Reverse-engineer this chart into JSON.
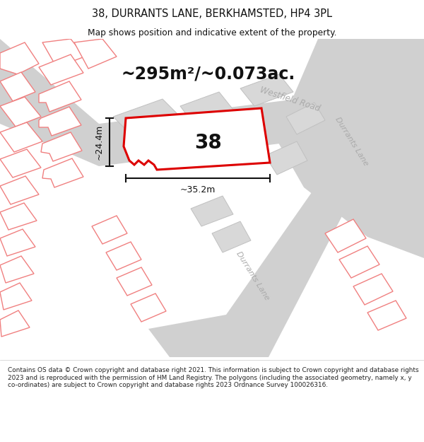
{
  "title_line1": "38, DURRANTS LANE, BERKHAMSTED, HP4 3PL",
  "title_line2": "Map shows position and indicative extent of the property.",
  "area_text": "~295m²/~0.073ac.",
  "number_label": "38",
  "dim_width": "~35.2m",
  "dim_height": "~24.4m",
  "road_label_1": "Westfield Road",
  "road_label_2a": "Durrants Lane",
  "road_label_2b": "Durrants Lane",
  "footer_text": "Contains OS data © Crown copyright and database right 2021. This information is subject to Crown copyright and database rights 2023 and is reproduced with the permission of HM Land Registry. The polygons (including the associated geometry, namely x, y co-ordinates) are subject to Crown copyright and database rights 2023 Ordnance Survey 100026316.",
  "bg_color": "#ffffff",
  "map_bg": "#f0f0f0",
  "building_fill": "#d8d8d8",
  "building_edge": "#c0c0c0",
  "other_plot_stroke": "#f08080",
  "other_plot_fill": "#ffffff",
  "main_plot_stroke": "#dd0000",
  "main_plot_fill": "#ffffff",
  "road_color": "#d0d0d0",
  "road_label_color": "#aaaaaa",
  "dim_color": "#111111",
  "title_color": "#111111",
  "number_color": "#111111",
  "area_color": "#111111",
  "footer_color": "#222222"
}
